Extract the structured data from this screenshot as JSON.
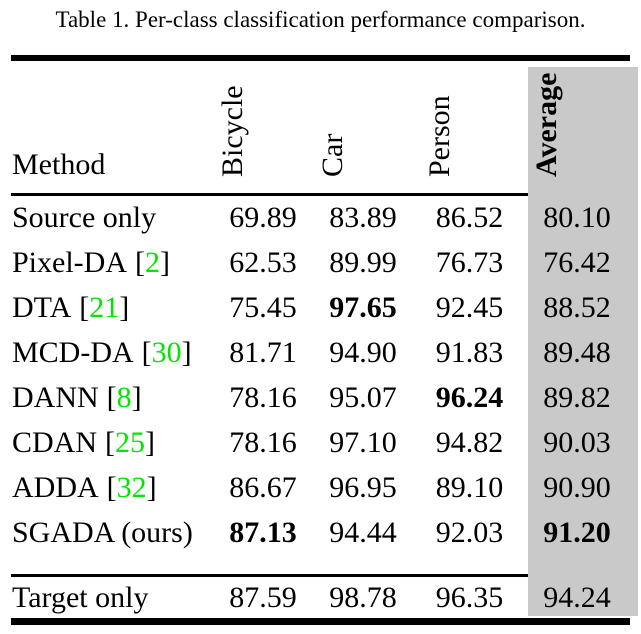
{
  "caption": "Table 1. Per-class classification performance comparison.",
  "colors": {
    "citation_green": "#00e600",
    "highlight_gray": "#c9c9c9",
    "text": "#000000",
    "background": "#ffffff"
  },
  "table": {
    "method_header": "Method",
    "cite_open": "[",
    "cite_close": "]",
    "columns": [
      {
        "label": "Bicycle",
        "bold": false,
        "rotated": true
      },
      {
        "label": "Car",
        "bold": false,
        "rotated": true
      },
      {
        "label": "Person",
        "bold": false,
        "rotated": true
      },
      {
        "label": "Average",
        "bold": true,
        "rotated": true,
        "highlighted": true
      }
    ],
    "rows": [
      {
        "method": "Source only",
        "cite": null,
        "values": [
          "69.89",
          "83.89",
          "86.52",
          "80.10"
        ],
        "bold": [
          false,
          false,
          false,
          false
        ]
      },
      {
        "method": "Pixel-DA",
        "cite": "2",
        "values": [
          "62.53",
          "89.99",
          "76.73",
          "76.42"
        ],
        "bold": [
          false,
          false,
          false,
          false
        ]
      },
      {
        "method": "DTA",
        "cite": "21",
        "values": [
          "75.45",
          "97.65",
          "92.45",
          "88.52"
        ],
        "bold": [
          false,
          true,
          false,
          false
        ]
      },
      {
        "method": "MCD-DA",
        "cite": "30",
        "values": [
          "81.71",
          "94.90",
          "91.83",
          "89.48"
        ],
        "bold": [
          false,
          false,
          false,
          false
        ]
      },
      {
        "method": "DANN",
        "cite": "8",
        "values": [
          "78.16",
          "95.07",
          "96.24",
          "89.82"
        ],
        "bold": [
          false,
          false,
          true,
          false
        ]
      },
      {
        "method": "CDAN",
        "cite": "25",
        "values": [
          "78.16",
          "97.10",
          "94.82",
          "90.03"
        ],
        "bold": [
          false,
          false,
          false,
          false
        ]
      },
      {
        "method": "ADDA",
        "cite": "32",
        "values": [
          "86.67",
          "96.95",
          "89.10",
          "90.90"
        ],
        "bold": [
          false,
          false,
          false,
          false
        ]
      },
      {
        "method": "SGADA (ours)",
        "cite": null,
        "values": [
          "87.13",
          "94.44",
          "92.03",
          "91.20"
        ],
        "bold": [
          true,
          false,
          false,
          true
        ]
      }
    ],
    "footer_row": {
      "method": "Target only",
      "cite": null,
      "values": [
        "87.59",
        "98.78",
        "96.35",
        "94.24"
      ],
      "bold": [
        false,
        false,
        false,
        false
      ]
    }
  }
}
